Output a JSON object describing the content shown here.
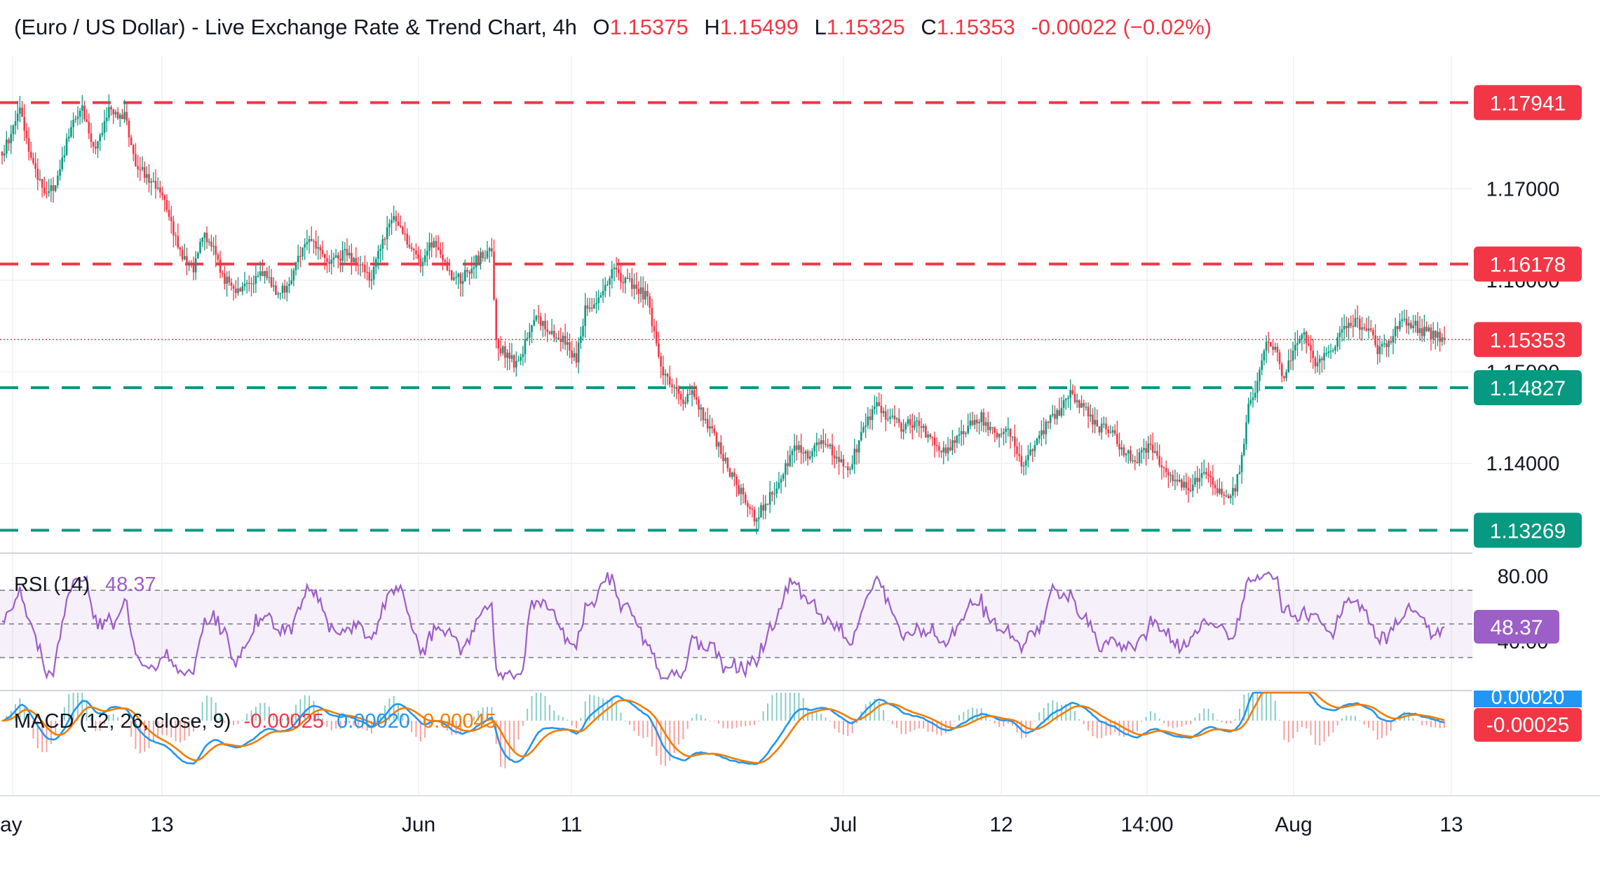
{
  "header": {
    "title": "(Euro / US Dollar) - Live Exchange Rate & Trend Chart, 4h",
    "o_label": "O",
    "o_value": "1.15375",
    "h_label": "H",
    "h_value": "1.15499",
    "l_label": "L",
    "l_value": "1.15325",
    "c_label": "C",
    "c_value": "1.15353",
    "change": "-0.00022 (−0.02%)"
  },
  "colors": {
    "up": "#089981",
    "down": "#f23645",
    "resistance": "#f23645",
    "support": "#089981",
    "rsi": "#9c5ec7",
    "macd": "#2196f3",
    "signal": "#f57c00",
    "grid": "#eef0f3",
    "axis_text": "#131722"
  },
  "chart_data": [
    {
      "type": "candlestick",
      "interval": "4h",
      "ylim": [
        1.1305,
        1.1822
      ],
      "price_ticks": [
        {
          "value": 1.17,
          "label": "1.17000"
        },
        {
          "value": 1.16,
          "label": "1.16000"
        },
        {
          "value": 1.15,
          "label": "1.15000"
        },
        {
          "value": 1.14,
          "label": "1.14000"
        }
      ],
      "x_ticks": [
        "ay",
        "13",
        "Jun",
        "11",
        "Jul",
        "12",
        "14:00",
        "Aug",
        "13"
      ],
      "levels": [
        {
          "kind": "resistance",
          "value": 1.17941,
          "label": "1.17941"
        },
        {
          "kind": "resistance",
          "value": 1.16178,
          "label": "1.16178"
        },
        {
          "kind": "support",
          "value": 1.14827,
          "label": "1.14827"
        },
        {
          "kind": "support",
          "value": 1.13269,
          "label": "1.13269"
        }
      ],
      "last_price": {
        "value": 1.15353,
        "label": "1.15353"
      },
      "close_path": [
        [
          0,
          1.1735
        ],
        [
          8,
          1.179
        ],
        [
          10,
          1.176
        ],
        [
          16,
          1.171
        ],
        [
          20,
          1.169
        ],
        [
          25,
          1.171
        ],
        [
          30,
          1.176
        ],
        [
          36,
          1.179
        ],
        [
          42,
          1.174
        ],
        [
          48,
          1.1785
        ],
        [
          55,
          1.178
        ],
        [
          60,
          1.173
        ],
        [
          66,
          1.171
        ],
        [
          72,
          1.169
        ],
        [
          76,
          1.166
        ],
        [
          80,
          1.163
        ],
        [
          86,
          1.161
        ],
        [
          90,
          1.165
        ],
        [
          94,
          1.164
        ],
        [
          100,
          1.16
        ],
        [
          106,
          1.159
        ],
        [
          112,
          1.16
        ],
        [
          118,
          1.161
        ],
        [
          124,
          1.158
        ],
        [
          130,
          1.1605
        ],
        [
          136,
          1.164
        ],
        [
          142,
          1.1638
        ],
        [
          148,
          1.162
        ],
        [
          154,
          1.163
        ],
        [
          160,
          1.162
        ],
        [
          166,
          1.16
        ],
        [
          170,
          1.164
        ],
        [
          176,
          1.167
        ],
        [
          182,
          1.164
        ],
        [
          188,
          1.162
        ],
        [
          194,
          1.1645
        ],
        [
          200,
          1.161
        ],
        [
          206,
          1.16
        ],
        [
          212,
          1.162
        ],
        [
          218,
          1.163
        ],
        [
          220,
          1.163
        ],
        [
          222,
          1.153
        ],
        [
          226,
          1.152
        ],
        [
          230,
          1.151
        ],
        [
          234,
          1.1525
        ],
        [
          240,
          1.156
        ],
        [
          246,
          1.1545
        ],
        [
          252,
          1.1535
        ],
        [
          258,
          1.1515
        ],
        [
          262,
          1.157
        ],
        [
          268,
          1.158
        ],
        [
          274,
          1.161
        ],
        [
          280,
          1.16
        ],
        [
          286,
          1.159
        ],
        [
          290,
          1.158
        ],
        [
          292,
          1.1555
        ],
        [
          296,
          1.15
        ],
        [
          302,
          1.1485
        ],
        [
          306,
          1.147
        ],
        [
          310,
          1.148
        ],
        [
          316,
          1.1445
        ],
        [
          322,
          1.142
        ],
        [
          328,
          1.1385
        ],
        [
          334,
          1.136
        ],
        [
          338,
          1.134
        ],
        [
          344,
          1.136
        ],
        [
          350,
          1.1385
        ],
        [
          356,
          1.142
        ],
        [
          362,
          1.1405
        ],
        [
          368,
          1.143
        ],
        [
          374,
          1.141
        ],
        [
          380,
          1.139
        ],
        [
          386,
          1.143
        ],
        [
          392,
          1.1465
        ],
        [
          398,
          1.145
        ],
        [
          404,
          1.144
        ],
        [
          410,
          1.1445
        ],
        [
          416,
          1.143
        ],
        [
          422,
          1.141
        ],
        [
          428,
          1.1425
        ],
        [
          434,
          1.144
        ],
        [
          440,
          1.145
        ],
        [
          446,
          1.143
        ],
        [
          452,
          1.144
        ],
        [
          458,
          1.14
        ],
        [
          464,
          1.142
        ],
        [
          470,
          1.1445
        ],
        [
          476,
          1.146
        ],
        [
          480,
          1.1475
        ],
        [
          486,
          1.146
        ],
        [
          492,
          1.144
        ],
        [
          498,
          1.1435
        ],
        [
          504,
          1.141
        ],
        [
          510,
          1.1405
        ],
        [
          516,
          1.142
        ],
        [
          522,
          1.1395
        ],
        [
          528,
          1.138
        ],
        [
          534,
          1.137
        ],
        [
          540,
          1.1395
        ],
        [
          546,
          1.137
        ],
        [
          552,
          1.136
        ],
        [
          556,
          1.139
        ],
        [
          560,
          1.146
        ],
        [
          564,
          1.149
        ],
        [
          568,
          1.153
        ],
        [
          572,
          1.1525
        ],
        [
          576,
          1.149
        ],
        [
          580,
          1.1525
        ],
        [
          584,
          1.1545
        ],
        [
          590,
          1.151
        ],
        [
          596,
          1.152
        ],
        [
          602,
          1.1545
        ],
        [
          608,
          1.1555
        ],
        [
          614,
          1.1545
        ],
        [
          618,
          1.1525
        ],
        [
          624,
          1.153
        ],
        [
          628,
          1.156
        ],
        [
          632,
          1.1555
        ],
        [
          638,
          1.1545
        ],
        [
          644,
          1.154
        ],
        [
          648,
          1.1535
        ]
      ]
    },
    {
      "type": "line",
      "name": "RSI (14)",
      "name_label": "RSI (14)",
      "current_label": "48.37",
      "ylim": [
        30,
        80
      ],
      "ticks": [
        {
          "value": 80,
          "label": "80.00"
        },
        {
          "value": 40,
          "label": "40.00"
        }
      ],
      "band": [
        30,
        70
      ],
      "midline": 50
    },
    {
      "type": "line",
      "name": "MACD (12, 26, close, 9)",
      "name_label": "MACD (12, 26, close, 9)",
      "values": [
        "-0.00025",
        "0.00020",
        "0.00045"
      ],
      "histogram_label": "-0.00025",
      "macd_label": "0.00020"
    }
  ]
}
